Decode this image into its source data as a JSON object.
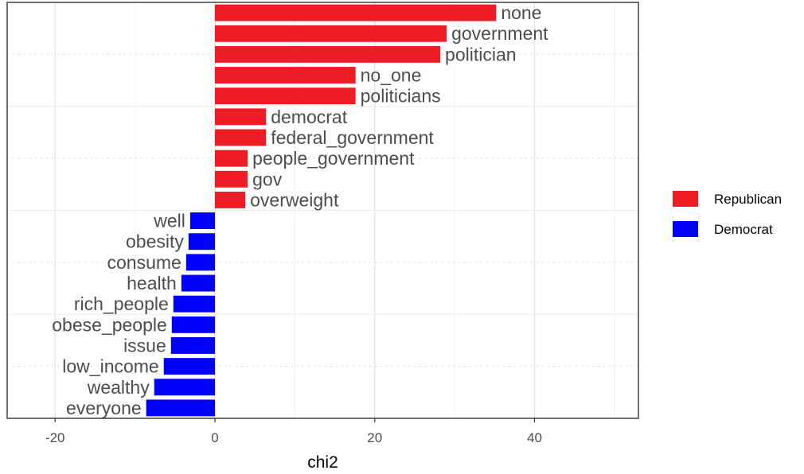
{
  "chart_data": {
    "type": "bar",
    "orientation": "horizontal",
    "xlabel": "chi2",
    "ylabel": "",
    "title": "",
    "xlim": [
      -26,
      53
    ],
    "x_ticks": [
      -20,
      0,
      20,
      40
    ],
    "x_tick_labels": [
      "-20",
      "0",
      "20",
      "40"
    ],
    "grid": true,
    "legend_position": "right",
    "categories": [
      "none",
      "government",
      "politician",
      "no_one",
      "politicians",
      "democrat",
      "federal_government",
      "people_government",
      "gov",
      "overweight",
      "well",
      "obesity",
      "consume",
      "health",
      "rich_people",
      "obese_people",
      "issue",
      "low_income",
      "wealthy",
      "everyone"
    ],
    "values": [
      35.2,
      29.0,
      28.2,
      17.6,
      17.6,
      6.4,
      6.4,
      4.1,
      4.1,
      3.8,
      -3.1,
      -3.3,
      -3.6,
      -4.2,
      -5.2,
      -5.4,
      -5.5,
      -6.4,
      -7.6,
      -8.6
    ],
    "groups": [
      "Republican",
      "Republican",
      "Republican",
      "Republican",
      "Republican",
      "Republican",
      "Republican",
      "Republican",
      "Republican",
      "Republican",
      "Democrat",
      "Democrat",
      "Democrat",
      "Democrat",
      "Democrat",
      "Democrat",
      "Democrat",
      "Democrat",
      "Democrat",
      "Democrat"
    ],
    "series": [
      {
        "name": "Republican",
        "color": "#ee1c25"
      },
      {
        "name": "Democrat",
        "color": "#0000ff"
      }
    ]
  }
}
